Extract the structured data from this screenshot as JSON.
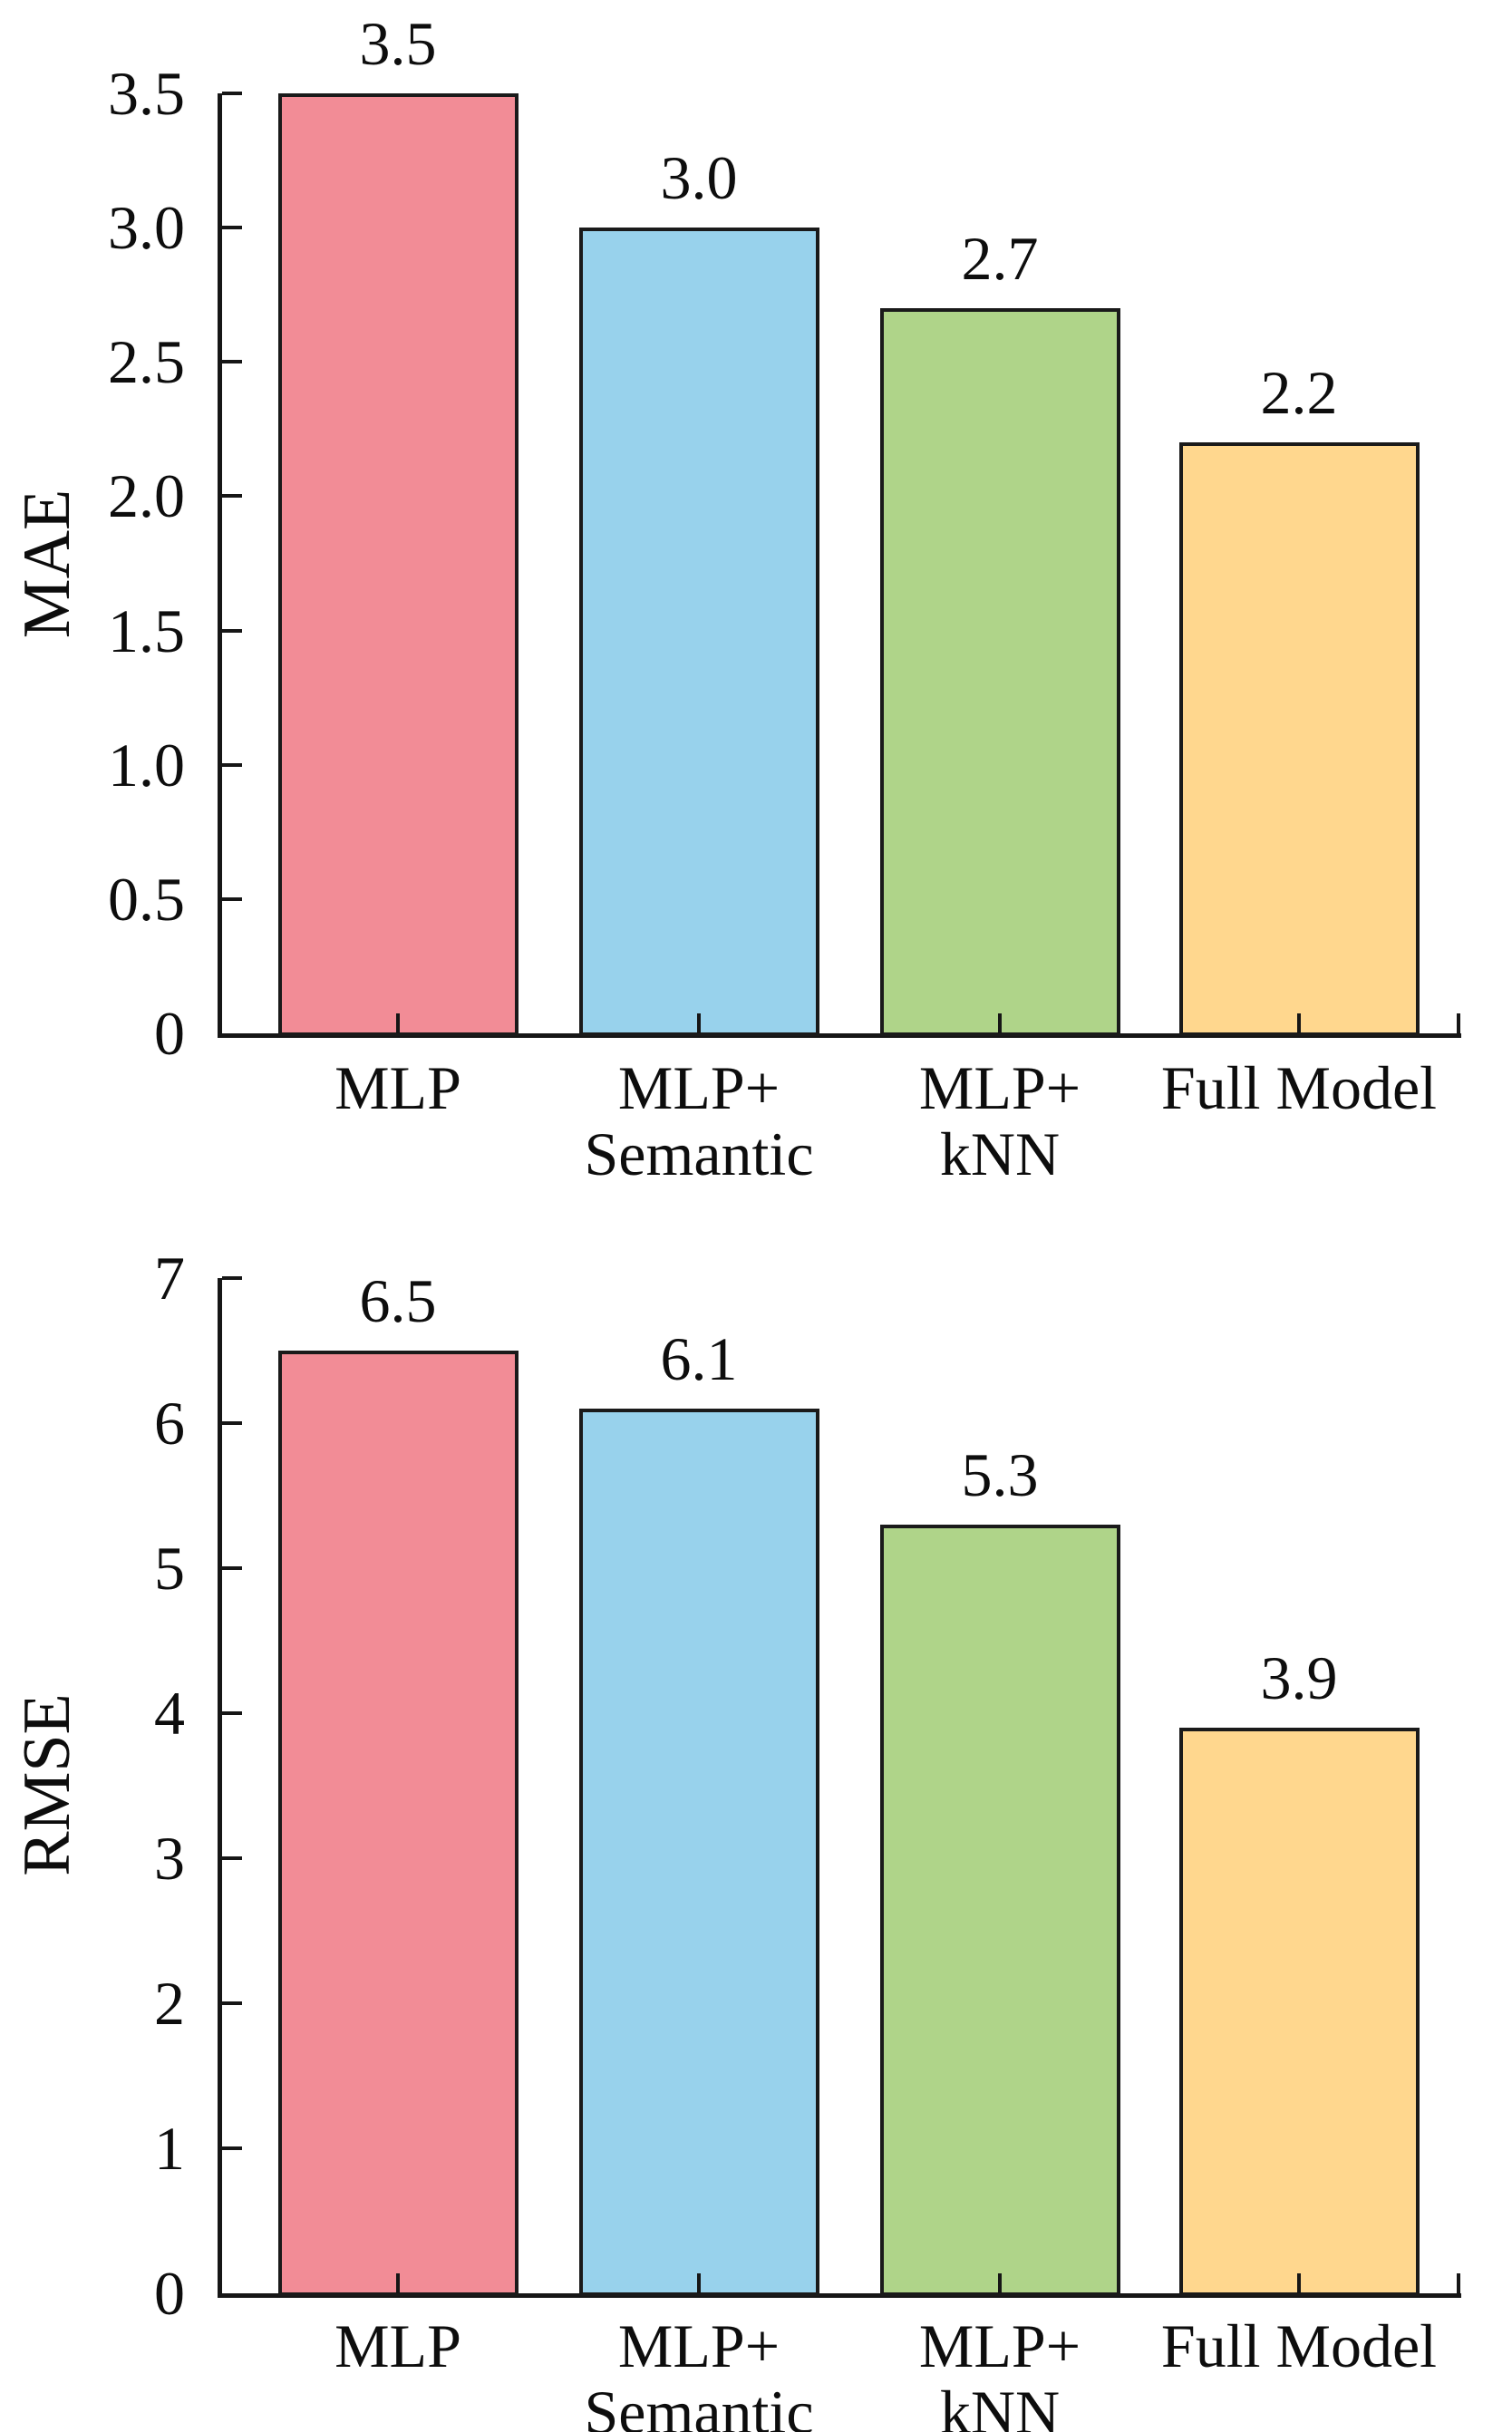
{
  "figure": {
    "background": "#ffffff",
    "text_color": "#0d0d0d",
    "axis_color": "#161616",
    "bar_edge_color": "#1a1a1a"
  },
  "chart_data": [
    {
      "type": "bar",
      "title": "",
      "xlabel": "",
      "ylabel": "MAE",
      "categories": [
        "MLP",
        "MLP+\nSemantic",
        "MLP+\nkNN",
        "Full Model"
      ],
      "values": [
        3.5,
        3.0,
        2.7,
        2.2
      ],
      "bar_labels": [
        "3.5",
        "3.0",
        "2.7",
        "2.2"
      ],
      "colors": [
        "#f28c96",
        "#98d2ec",
        "#afd489",
        "#ffd78e"
      ],
      "ylim": [
        0,
        3.5
      ],
      "yticks": [
        3.5,
        3.0,
        2.5,
        2.0,
        1.5,
        1.0,
        0.5,
        0
      ],
      "ytick_labels": [
        "3.5",
        "3.0",
        "2.5",
        "2.0",
        "1.5",
        "1.0",
        "0.5",
        "0"
      ],
      "grid": false,
      "legend": null,
      "tick_direction": "in"
    },
    {
      "type": "bar",
      "title": "",
      "xlabel": "",
      "ylabel": "RMSE",
      "categories": [
        "MLP",
        "MLP+\nSemantic",
        "MLP+\nkNN",
        "Full Model"
      ],
      "values": [
        6.5,
        6.1,
        5.3,
        3.9
      ],
      "bar_labels": [
        "6.5",
        "6.1",
        "5.3",
        "3.9"
      ],
      "colors": [
        "#f28c96",
        "#98d2ec",
        "#afd489",
        "#ffd78e"
      ],
      "ylim": [
        0,
        7
      ],
      "yticks": [
        7,
        6,
        5,
        4,
        3,
        2,
        1,
        0
      ],
      "ytick_labels": [
        "7",
        "6",
        "5",
        "4",
        "3",
        "2",
        "1",
        "0"
      ],
      "grid": false,
      "legend": null,
      "tick_direction": "in"
    }
  ]
}
